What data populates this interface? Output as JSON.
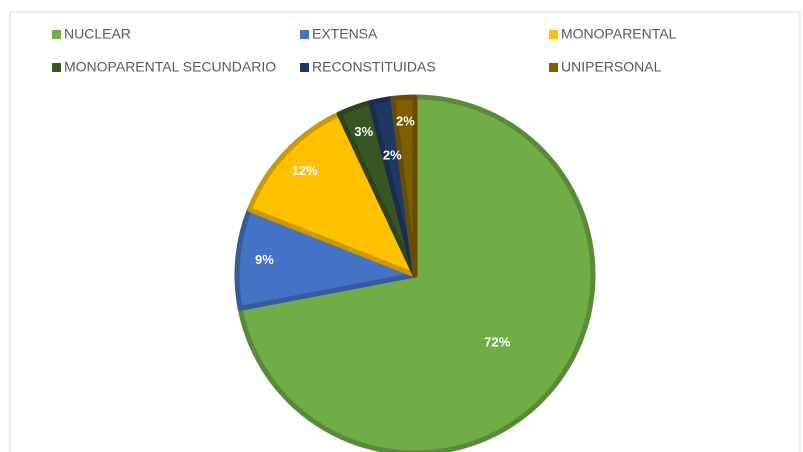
{
  "chart_data": {
    "type": "pie",
    "categories": [
      "NUCLEAR",
      "EXTENSA",
      "MONOPARENTAL",
      "MONOPARENTAL SECUNDARIO",
      "RECONSTITUIDAS",
      "UNIPERSONAL"
    ],
    "values": [
      72,
      9,
      12,
      3,
      2,
      2
    ],
    "value_labels": [
      "72%",
      "9%",
      "12%",
      "3%",
      "2%",
      "2%"
    ],
    "colors": [
      "#70ad47",
      "#4472c4",
      "#ffc000",
      "#375623",
      "#203864",
      "#7f6000"
    ],
    "legend": "top"
  }
}
